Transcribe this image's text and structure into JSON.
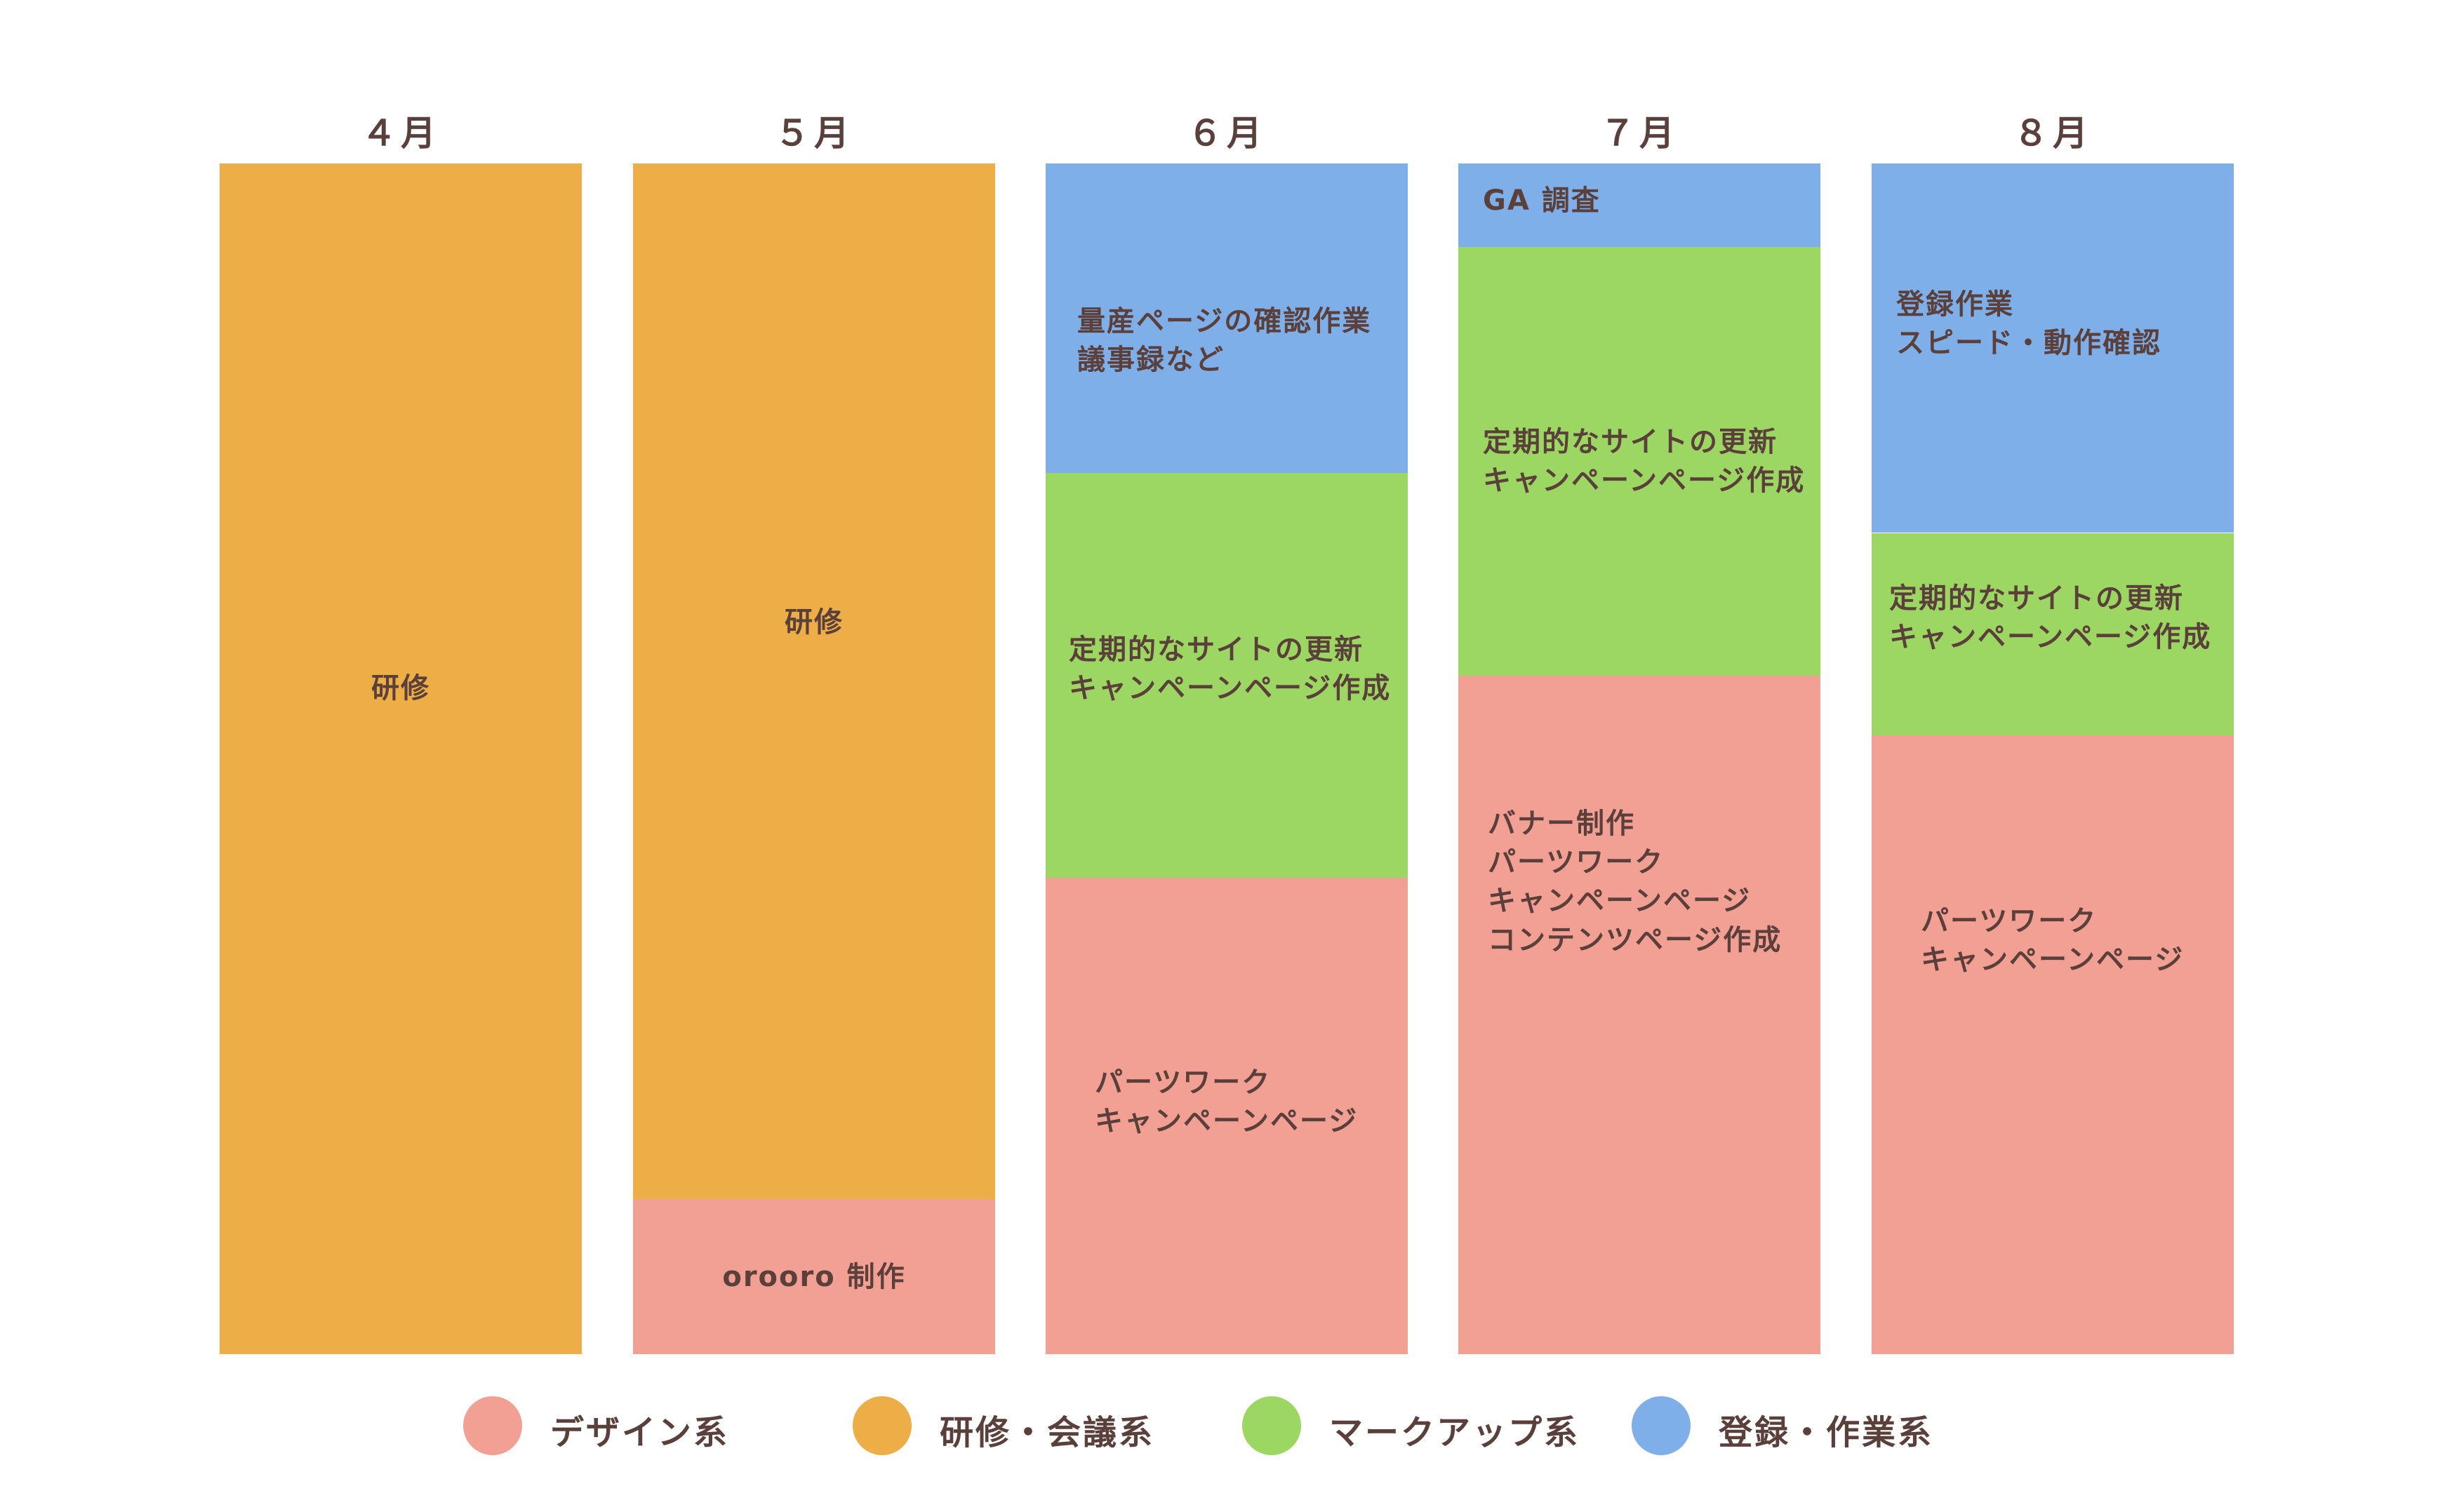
{
  "chart_data": {
    "type": "stacked-bar",
    "categories": [
      "４月",
      "５月",
      "６月",
      "７月",
      "８月"
    ],
    "series": [
      {
        "key": "design",
        "name": "デザイン系",
        "color": "#f2a093",
        "values": [
          0,
          13,
          40,
          57,
          52
        ]
      },
      {
        "key": "training",
        "name": "研修・会議系",
        "color": "#edad47",
        "values": [
          100,
          87,
          0,
          0,
          0
        ]
      },
      {
        "key": "markup",
        "name": "マークアップ系",
        "color": "#9dd763",
        "values": [
          0,
          0,
          34,
          36,
          17
        ]
      },
      {
        "key": "register",
        "name": "登録・作業系",
        "color": "#7fafe8",
        "values": [
          0,
          0,
          26,
          7,
          31
        ]
      }
    ],
    "stack_order_bottom_to_top": [
      "design",
      "training",
      "markup",
      "register"
    ],
    "ylim": [
      0,
      100
    ],
    "legend_position": "bottom-center",
    "segment_labels": [
      {
        "month": 0,
        "series": "training",
        "text": "研修"
      },
      {
        "month": 1,
        "series": "training",
        "text": "研修"
      },
      {
        "month": 1,
        "series": "design",
        "text": "orooro 制作"
      },
      {
        "month": 2,
        "series": "register",
        "text": "量産ページの確認作業\n議事録など"
      },
      {
        "month": 2,
        "series": "markup",
        "text": "定期的なサイトの更新\nキャンペーンページ作成"
      },
      {
        "month": 2,
        "series": "design",
        "text": "パーツワーク\nキャンペーンページ"
      },
      {
        "month": 3,
        "series": "register",
        "text": "GA 調査"
      },
      {
        "month": 3,
        "series": "markup",
        "text": "定期的なサイトの更新\nキャンペーンページ作成"
      },
      {
        "month": 3,
        "series": "design",
        "text": "バナー制作\nパーツワーク\nキャンペーンページ\nコンテンツページ作成"
      },
      {
        "month": 4,
        "series": "register",
        "text": "登録作業\nスピード・動作確認"
      },
      {
        "month": 4,
        "series": "markup",
        "text": "定期的なサイトの更新\nキャンペーンページ作成"
      },
      {
        "month": 4,
        "series": "design",
        "text": "パーツワーク\nキャンペーンページ"
      }
    ]
  }
}
